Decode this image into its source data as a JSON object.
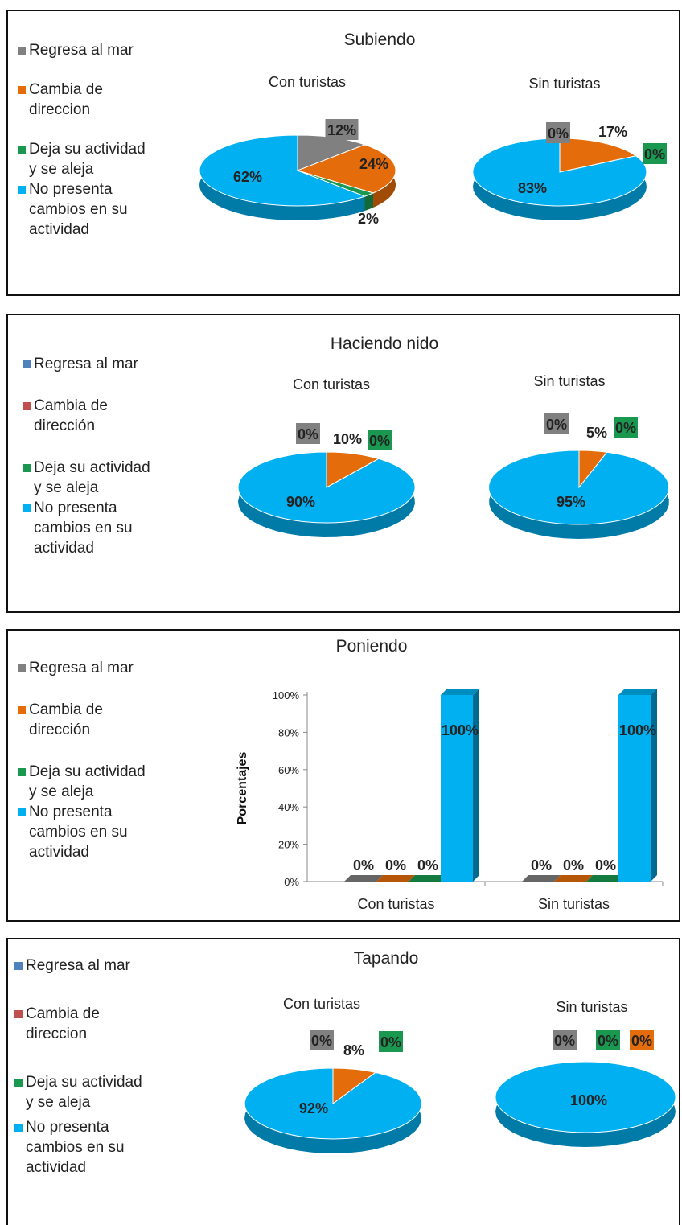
{
  "colors": {
    "gray": "#808080",
    "orange": "#e46c0a",
    "green": "#1a9850",
    "blue": "#00b0f0",
    "steel_blue": "#4f81bd",
    "red": "#c0504d"
  },
  "chart_data": [
    {
      "type": "pie",
      "title": "Subiendo",
      "legend": [
        {
          "label": "Regresa al mar",
          "color": "#808080"
        },
        {
          "label": "Cambia de direccion",
          "color": "#e46c0a"
        },
        {
          "label": "Deja su actividad y se aleja",
          "color": "#1a9850"
        },
        {
          "label": "No presenta cambios en su actividad",
          "color": "#00b0f0"
        }
      ],
      "pies": [
        {
          "name": "Con turistas",
          "values": [
            12,
            24,
            2,
            62
          ],
          "labels": [
            "12%",
            "24%",
            "2%",
            "62%"
          ]
        },
        {
          "name": "Sin turistas",
          "values": [
            0,
            17,
            0,
            83
          ],
          "labels": [
            "0%",
            "17%",
            "0%",
            "83%"
          ]
        }
      ]
    },
    {
      "type": "pie",
      "title": "Haciendo nido",
      "legend": [
        {
          "label": "Regresa al mar",
          "color": "#4f81bd"
        },
        {
          "label": "Cambia de dirección",
          "color": "#c0504d"
        },
        {
          "label": "Deja su actividad y se aleja",
          "color": "#1a9850"
        },
        {
          "label": "No presenta cambios en su actividad",
          "color": "#00b0f0"
        }
      ],
      "pies": [
        {
          "name": "Con turistas",
          "values": [
            0,
            10,
            0,
            90
          ],
          "labels": [
            "0%",
            "10%",
            "0%",
            "90%"
          ]
        },
        {
          "name": "Sin turistas",
          "values": [
            0,
            5,
            0,
            95
          ],
          "labels": [
            "0%",
            "5%",
            "0%",
            "95%"
          ]
        }
      ]
    },
    {
      "type": "bar",
      "title": "Poniendo",
      "ylabel": "Porcentajes",
      "ylim": [
        0,
        100
      ],
      "yticks": [
        "0%",
        "20%",
        "40%",
        "60%",
        "80%",
        "100%"
      ],
      "categories": [
        "Con turistas",
        "Sin turistas"
      ],
      "legend": [
        {
          "label": "Regresa al mar",
          "color": "#808080"
        },
        {
          "label": "Cambia de dirección",
          "color": "#e46c0a"
        },
        {
          "label": "Deja su actividad y se aleja",
          "color": "#1a9850"
        },
        {
          "label": "No presenta cambios en su actividad",
          "color": "#00b0f0"
        }
      ],
      "series": [
        {
          "values": [
            0,
            0
          ],
          "labels": [
            "0%",
            "0%"
          ]
        },
        {
          "values": [
            0,
            0
          ],
          "labels": [
            "0%",
            "0%"
          ]
        },
        {
          "values": [
            0,
            0
          ],
          "labels": [
            "0%",
            "0%"
          ]
        },
        {
          "values": [
            100,
            100
          ],
          "labels": [
            "100%",
            "100%"
          ]
        }
      ]
    },
    {
      "type": "pie",
      "title": "Tapando",
      "legend": [
        {
          "label": "Regresa al mar",
          "color": "#4f81bd"
        },
        {
          "label": "Cambia de direccion",
          "color": "#c0504d"
        },
        {
          "label": "Deja su actividad y se aleja",
          "color": "#1a9850"
        },
        {
          "label": "No presenta cambios en su actividad",
          "color": "#00b0f0"
        }
      ],
      "pies": [
        {
          "name": "Con turistas",
          "values": [
            0,
            8,
            0,
            92
          ],
          "labels": [
            "0%",
            "8%",
            "0%",
            "92%"
          ]
        },
        {
          "name": "Sin turistas",
          "values": [
            0,
            0,
            0,
            100
          ],
          "labels": [
            "0%",
            "0%",
            "0%",
            "100%"
          ]
        }
      ]
    }
  ]
}
